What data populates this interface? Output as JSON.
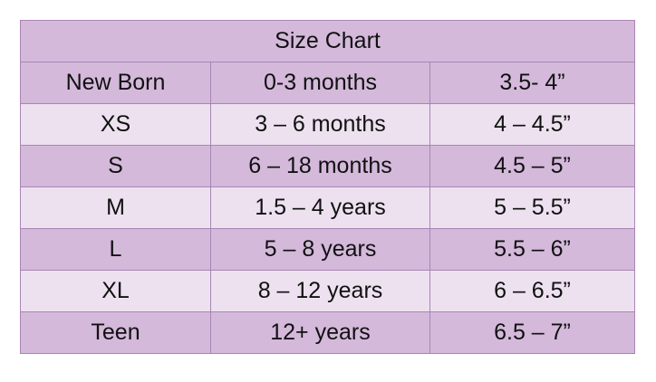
{
  "table": {
    "title": "Size Chart",
    "rows": [
      [
        "New Born",
        "0-3 months",
        "3.5- 4”"
      ],
      [
        "XS",
        "3 – 6 months",
        "4 – 4.5”"
      ],
      [
        "S",
        "6 – 18 months",
        "4.5 – 5”"
      ],
      [
        "M",
        "1.5 – 4 years",
        "5 – 5.5”"
      ],
      [
        "L",
        "5 – 8 years",
        "5.5 – 6”"
      ],
      [
        "XL",
        "8 – 12 years",
        "6 – 6.5”"
      ],
      [
        "Teen",
        "12+ years",
        "6.5 – 7”"
      ]
    ]
  }
}
